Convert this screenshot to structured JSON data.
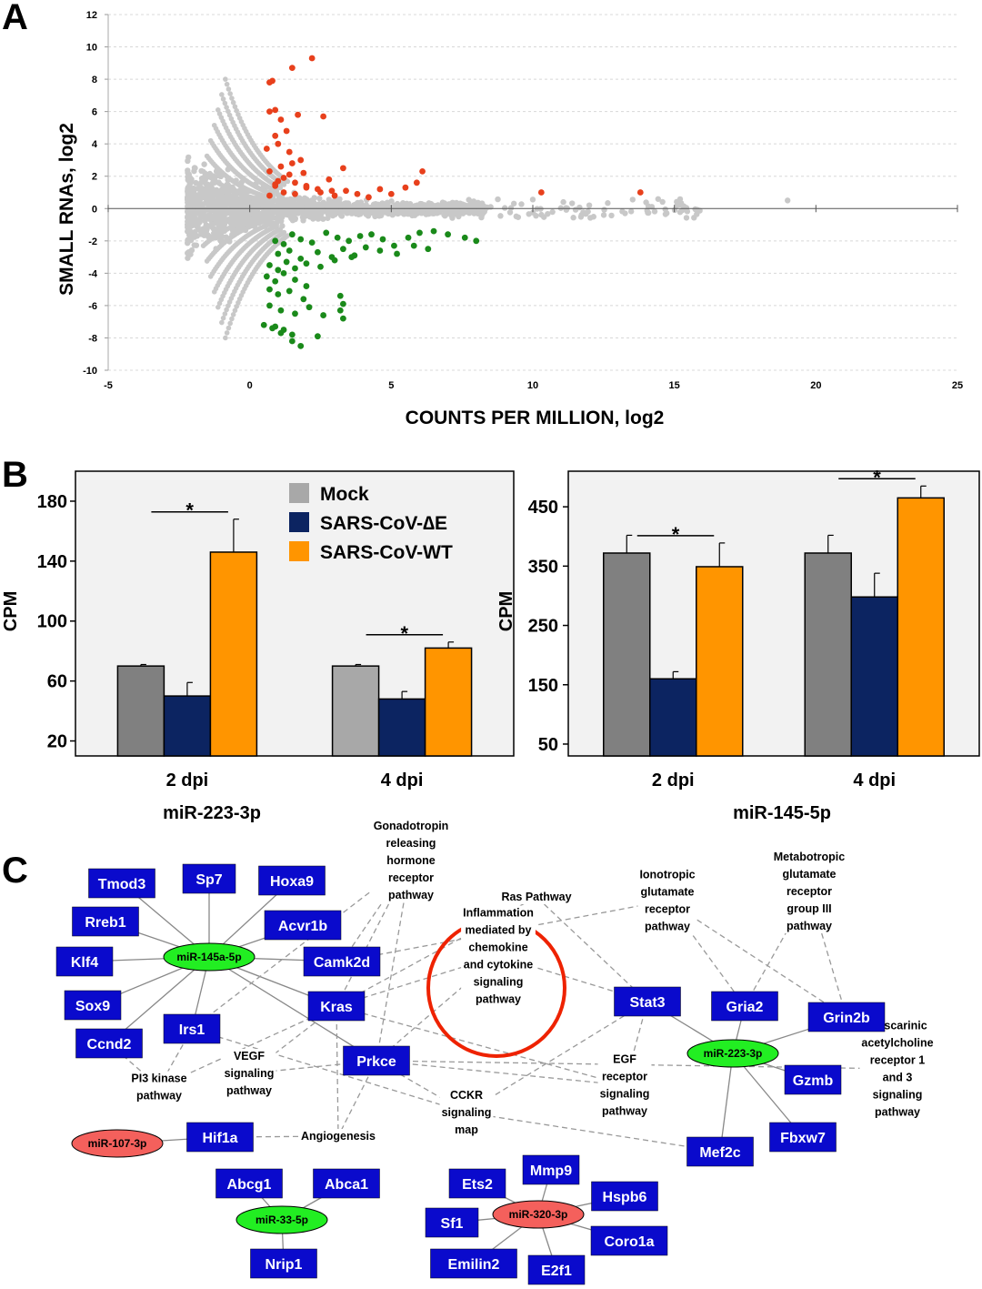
{
  "panels": {
    "A": "A",
    "B": "B",
    "C": "C"
  },
  "chart_data": [
    {
      "type": "scatter",
      "panel": "A",
      "xlabel": "COUNTS PER MILLION, log2",
      "ylabel": "SMALL RNAs, log2",
      "xlim": [
        -5,
        25
      ],
      "ylim": [
        -10,
        12
      ],
      "xticks": [
        "-5",
        "0",
        "5",
        "10",
        "15",
        "20",
        "25"
      ],
      "yticks": [
        "-10",
        "-8",
        "-6",
        "-4",
        "-2",
        "0",
        "2",
        "4",
        "6",
        "8",
        "10",
        "12"
      ],
      "grid": "horizontal dashed",
      "series": [
        {
          "color": "#e8401c",
          "x": [
            0.7,
            0.8,
            0.9,
            1.5,
            2.2,
            0.7,
            0.9,
            1.1,
            1.4,
            1.7,
            2.6,
            0.6,
            1.0,
            1.3,
            1.5,
            0.7,
            1.1,
            1.4,
            1.9,
            3.3,
            0.9,
            1.2,
            1.6,
            2.0,
            2.4,
            2.9,
            0.7,
            0.9,
            1.0,
            1.2,
            1.6,
            2.0,
            2.5,
            3.0,
            3.4,
            3.8,
            4.2,
            4.6,
            5.0,
            5.5,
            5.9,
            6.1,
            10.3,
            13.8,
            1.8,
            2.8
          ],
          "y": [
            7.8,
            7.9,
            6.1,
            8.7,
            9.3,
            6.0,
            4.5,
            5.5,
            3.5,
            5.8,
            5.7,
            3.7,
            4.0,
            4.8,
            2.8,
            2.3,
            2.6,
            2.1,
            2.2,
            2.5,
            1.4,
            1.9,
            1.6,
            1.3,
            1.2,
            1.1,
            0.8,
            1.5,
            1.7,
            1.0,
            0.9,
            1.4,
            1.0,
            0.8,
            1.1,
            0.9,
            0.7,
            1.2,
            0.9,
            1.3,
            1.6,
            2.3,
            1.0,
            1.0,
            3.0,
            1.8
          ]
        },
        {
          "color": "#1a8a1a",
          "x": [
            0.9,
            1.2,
            1.5,
            1.8,
            2.2,
            2.7,
            3.1,
            3.5,
            3.9,
            4.3,
            4.7,
            5.1,
            5.6,
            6.0,
            6.5,
            7.0,
            7.6,
            8.0,
            1.0,
            1.4,
            1.8,
            2.4,
            2.9,
            3.3,
            3.7,
            4.1,
            4.6,
            5.2,
            5.8,
            6.3,
            0.7,
            1.0,
            1.3,
            1.6,
            2.0,
            2.5,
            3.0,
            3.6,
            0.6,
            0.9,
            1.2,
            1.6,
            2.0,
            0.7,
            1.0,
            1.4,
            1.9,
            3.2,
            3.3,
            0.7,
            1.1,
            1.6,
            2.1,
            2.6,
            3.2,
            3.3,
            0.5,
            0.8,
            1.1,
            1.5,
            1.8,
            2.4,
            0.9,
            1.2,
            1.5
          ],
          "y": [
            -2.0,
            -2.2,
            -1.6,
            -1.9,
            -2.1,
            -1.5,
            -1.8,
            -2.0,
            -1.7,
            -1.6,
            -1.9,
            -2.3,
            -1.8,
            -1.5,
            -1.4,
            -1.6,
            -1.8,
            -2.0,
            -2.8,
            -2.6,
            -3.1,
            -2.7,
            -3.0,
            -2.5,
            -2.9,
            -2.4,
            -2.6,
            -2.8,
            -2.3,
            -2.5,
            -3.5,
            -3.8,
            -3.3,
            -3.7,
            -3.4,
            -3.6,
            -3.2,
            -3.0,
            -4.2,
            -4.5,
            -4.0,
            -4.4,
            -4.8,
            -5.0,
            -5.3,
            -5.1,
            -5.6,
            -5.4,
            -5.9,
            -6.0,
            -6.3,
            -6.5,
            -6.1,
            -6.6,
            -6.3,
            -6.8,
            -7.2,
            -7.4,
            -7.7,
            -8.2,
            -8.5,
            -7.9,
            -7.3,
            -7.5,
            -7.8
          ]
        }
      ]
    },
    {
      "type": "bar",
      "panel": "B-left",
      "ylabel": "CPM",
      "xlabel": "miR-223-3p",
      "categories": [
        "2 dpi",
        "4 dpi"
      ],
      "yticks": [
        "20",
        "60",
        "100",
        "140",
        "180"
      ],
      "ylim": [
        10,
        200
      ],
      "series": [
        {
          "name": "Mock",
          "color": "#808080",
          "values": [
            70,
            70
          ],
          "errors": [
            1,
            1
          ]
        },
        {
          "name": "SARS-CoV-∆E",
          "color": "#0c2461",
          "values": [
            50,
            48
          ],
          "errors": [
            9,
            5
          ]
        },
        {
          "name": "SARS-CoV-WT",
          "color": "#ff9500",
          "values": [
            146,
            82
          ],
          "errors": [
            22,
            4
          ]
        }
      ],
      "significance": [
        "*",
        "*"
      ]
    },
    {
      "type": "bar",
      "panel": "B-right",
      "ylabel": "CPM",
      "xlabel": "miR-145-5p",
      "categories": [
        "2 dpi",
        "4 dpi"
      ],
      "yticks": [
        "50",
        "150",
        "250",
        "350",
        "450"
      ],
      "ylim": [
        30,
        510
      ],
      "series": [
        {
          "name": "Mock",
          "color": "#808080",
          "values": [
            372,
            372
          ],
          "errors": [
            30,
            30
          ]
        },
        {
          "name": "SARS-CoV-∆E",
          "color": "#0c2461",
          "values": [
            160,
            298
          ],
          "errors": [
            12,
            40
          ]
        },
        {
          "name": "SARS-CoV-WT",
          "color": "#ff9500",
          "values": [
            349,
            465
          ],
          "errors": [
            40,
            20
          ]
        }
      ],
      "significance": [
        "*",
        "*"
      ]
    }
  ],
  "legend": {
    "mock": "Mock",
    "de": "SARS-CoV-∆E",
    "wt": "SARS-CoV-WT"
  },
  "network": {
    "genes": [
      "Tmod3",
      "Sp7",
      "Hoxa9",
      "Rreb1",
      "Acvr1b",
      "Klf4",
      "Camk2d",
      "Sox9",
      "Kras",
      "Irs1",
      "Ccnd2",
      "Prkce",
      "Stat3",
      "Gria2",
      "Grin2b",
      "Gzmb",
      "Hif1a",
      "Mef2c",
      "Fbxw7",
      "Abcg1",
      "Abca1",
      "Mmp9",
      "Ets2",
      "Hspb6",
      "Sf1",
      "Coro1a",
      "Emilin2",
      "E2f1",
      "Nrip1"
    ],
    "mirnas": [
      {
        "label": "miR-145a-5p",
        "color": "#22ee22"
      },
      {
        "label": "miR-223-3p",
        "color": "#22ee22"
      },
      {
        "label": "miR-107-3p",
        "color": "#f4605c"
      },
      {
        "label": "miR-33-5p",
        "color": "#22ee22"
      },
      {
        "label": "miR-320-3p",
        "color": "#f4605c"
      }
    ],
    "pathways": [
      [
        "Gonadotropin",
        "releasing",
        "hormone",
        "receptor",
        "pathway"
      ],
      [
        "Ras Pathway"
      ],
      [
        "Ionotropic",
        "glutamate",
        "receptor",
        "pathway"
      ],
      [
        "Metabotropic",
        "glutamate",
        "receptor",
        "group III",
        "pathway"
      ],
      [
        "Inflammation",
        "mediated by",
        "chemokine",
        "and cytokine",
        "signaling",
        "pathway"
      ],
      [
        "PI3 kinase",
        "pathway"
      ],
      [
        "VEGF",
        "signaling",
        "pathway"
      ],
      [
        "Angiogenesis"
      ],
      [
        "EGF",
        "receptor",
        "signaling",
        "pathway"
      ],
      [
        "CCKR",
        "signaling",
        "map"
      ],
      [
        "Muscarinic",
        "acetylcholine",
        "receptor 1",
        "and 3",
        "signaling",
        "pathway"
      ]
    ]
  }
}
